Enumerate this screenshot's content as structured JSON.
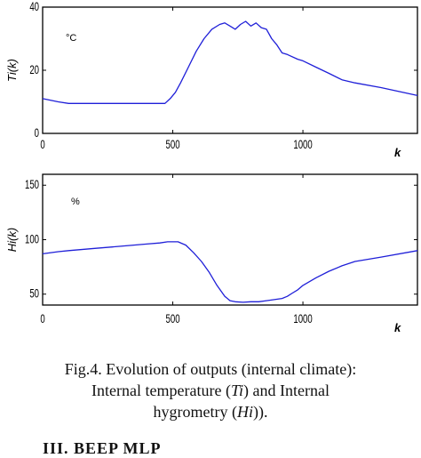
{
  "chart_data": [
    {
      "type": "line",
      "title": "",
      "ylabel": "Ti(k)",
      "xlabel": "k",
      "unit_annotation": "°C",
      "xlim": [
        0,
        1440
      ],
      "ylim": [
        0,
        40
      ],
      "x_ticks": [
        "0",
        "500",
        "1000"
      ],
      "y_ticks": [
        "0",
        "20",
        "40"
      ],
      "series": [
        {
          "color": "#1f1fd8",
          "x": [
            0,
            60,
            100,
            200,
            300,
            400,
            470,
            490,
            510,
            530,
            560,
            590,
            620,
            650,
            680,
            700,
            720,
            740,
            760,
            780,
            800,
            820,
            840,
            860,
            880,
            900,
            920,
            940,
            980,
            1000,
            1050,
            1100,
            1150,
            1200,
            1300,
            1440
          ],
          "y": [
            11,
            10,
            9.5,
            9.5,
            9.5,
            9.5,
            9.5,
            11,
            13,
            16,
            21,
            26,
            30,
            33,
            34.5,
            35,
            34,
            33,
            34.5,
            35.5,
            34,
            35,
            33.5,
            33,
            30,
            28,
            25.5,
            25,
            23.5,
            23,
            21,
            19,
            17,
            16,
            14.5,
            12
          ]
        }
      ]
    },
    {
      "type": "line",
      "title": "",
      "ylabel": "Hi(k)",
      "xlabel": "k",
      "unit_annotation": "%",
      "xlim": [
        0,
        1440
      ],
      "ylim": [
        40,
        160
      ],
      "x_ticks": [
        "0",
        "500",
        "1000"
      ],
      "y_ticks": [
        "50",
        "100",
        "150"
      ],
      "series": [
        {
          "color": "#1f1fd8",
          "x": [
            0,
            60,
            100,
            200,
            300,
            400,
            450,
            480,
            520,
            550,
            580,
            610,
            640,
            670,
            700,
            720,
            740,
            770,
            800,
            830,
            860,
            890,
            920,
            940,
            960,
            980,
            1000,
            1050,
            1100,
            1150,
            1200,
            1300,
            1440
          ],
          "y": [
            87,
            89,
            90,
            92,
            94,
            96,
            97,
            98,
            98,
            95,
            88,
            80,
            70,
            58,
            48,
            44,
            43,
            42.5,
            43,
            43,
            44,
            45,
            46,
            48,
            51,
            54,
            58,
            65,
            71,
            76,
            80,
            84,
            90
          ]
        }
      ]
    }
  ],
  "caption": {
    "line1": "Fig.4. Evolution of outputs (internal climate):",
    "line2a": "Internal temperature (",
    "line2b": "Ti",
    "line2c": ") and Internal",
    "line3a": "hygrometry (",
    "line3b": "Hi",
    "line3c": "))."
  },
  "footer_snippet": "III.      BEEP MLP"
}
